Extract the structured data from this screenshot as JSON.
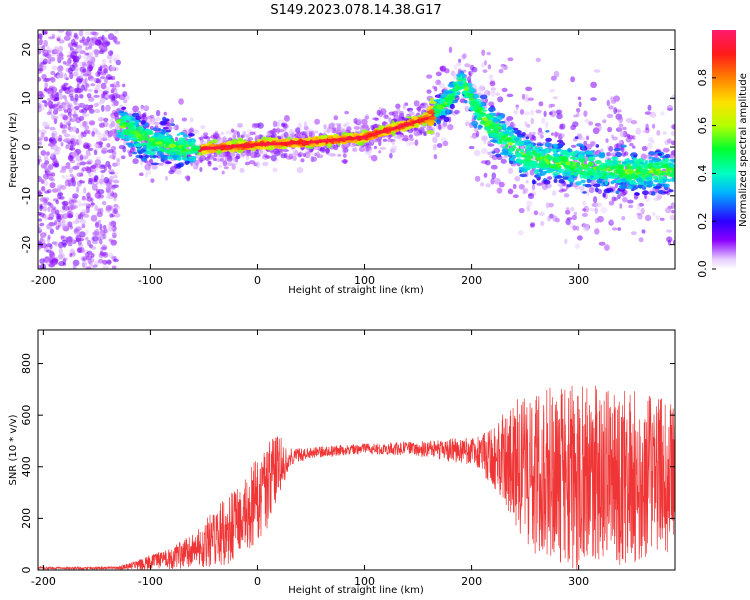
{
  "title": "S149.2023.078.14.38.G17",
  "chart_data": [
    {
      "type": "heatmap",
      "xlabel": "Height of straight line (km)",
      "ylabel": "Frequency (Hz)",
      "xlim": [
        -205,
        390
      ],
      "ylim": [
        -25,
        24
      ],
      "x_ticks": [
        -200,
        -100,
        0,
        100,
        200,
        300
      ],
      "y_ticks": [
        -20,
        -10,
        0,
        10,
        20
      ],
      "colorbar": {
        "label": "Normalized spectral amplitude",
        "range": [
          0,
          1
        ],
        "ticks": [
          0.0,
          0.2,
          0.4,
          0.6,
          0.8
        ],
        "colormap": "gist_rainbow"
      },
      "ridge": {
        "x": [
          -130,
          -100,
          -60,
          -30,
          0,
          50,
          100,
          130,
          160,
          180,
          190,
          210,
          250,
          300,
          350,
          385
        ],
        "y": [
          5,
          1,
          -0.5,
          0,
          0.5,
          1,
          2,
          4,
          6,
          10,
          14,
          6,
          -2,
          -4,
          -5,
          -5
        ]
      },
      "noise_region": {
        "x": [
          -205,
          -130
        ],
        "y": [
          -25,
          24
        ]
      }
    },
    {
      "type": "line",
      "xlabel": "Height of straight line (km)",
      "ylabel": "SNR (10 * v/v)",
      "xlim": [
        -205,
        390
      ],
      "ylim": [
        0,
        930
      ],
      "x_ticks": [
        -200,
        -100,
        0,
        100,
        200,
        300
      ],
      "y_ticks": [
        0,
        200,
        400,
        600,
        800
      ],
      "series": [
        {
          "color": "#ef3535",
          "profile_x": [
            -205,
            -130,
            -110,
            -80,
            -60,
            -40,
            -20,
            0,
            10,
            20,
            30,
            50,
            100,
            150,
            200,
            220,
            240,
            260,
            300,
            350,
            390
          ],
          "profile_y": [
            8,
            8,
            20,
            45,
            80,
            120,
            180,
            270,
            330,
            400,
            440,
            455,
            470,
            470,
            460,
            440,
            420,
            380,
            360,
            360,
            360
          ],
          "noise_amp": [
            3,
            4,
            15,
            30,
            50,
            80,
            110,
            120,
            120,
            90,
            25,
            15,
            15,
            20,
            40,
            80,
            180,
            230,
            260,
            240,
            210
          ]
        }
      ]
    }
  ]
}
